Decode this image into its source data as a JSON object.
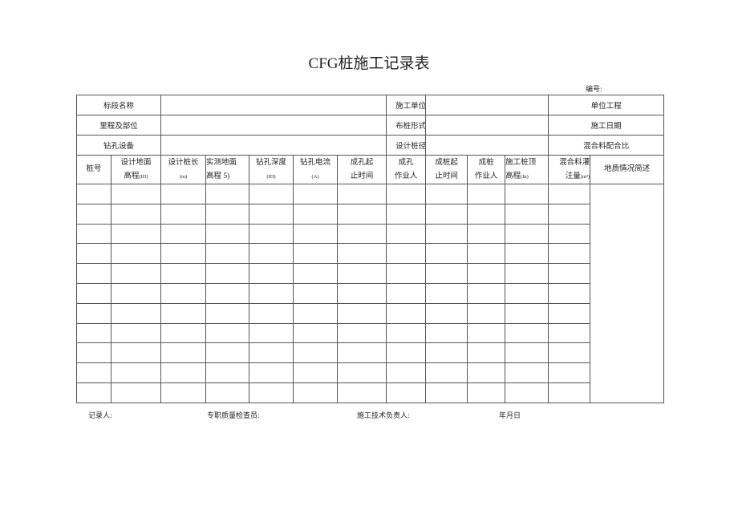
{
  "title": "CFG桩施工记录表",
  "doc_no_label": "编号:",
  "info_rows": [
    {
      "l1": "标段名称",
      "l2": "施工单位",
      "l3": "单位工程"
    },
    {
      "l1": "里程及部位",
      "l2": "布桩形式",
      "l3": "施工日期"
    },
    {
      "l1": "钻孔设备",
      "l2": "设计桩径",
      "l3": "混合料配合比"
    }
  ],
  "headers": {
    "h0": "桩号",
    "h1a": "设计地面",
    "h1b": "高程",
    "h1u": "(ID)",
    "h2a": "设计桩长",
    "h2u": "(m)",
    "h3a": "实测地面",
    "h3b": "高程 5)",
    "h4a": "钻孔深度",
    "h4u": "(ID)",
    "h5a": "钻孔电流",
    "h5u": "(A)",
    "h6a": "成孔起",
    "h6b": "止时间",
    "h7a": "成孔",
    "h7b": "作业人",
    "h8a": "成桩起",
    "h8b": "止时间",
    "h9a": "成桩",
    "h9b": "作业人",
    "h10a": "施工桩顶",
    "h10b": "高程",
    "h10u": "(In)",
    "h11a": "混合料灌",
    "h11b": "注量",
    "h11u": "(m³)",
    "h12": "地质情况简述"
  },
  "footer": {
    "recorder": "记录人:",
    "inspector": "专职质量检查员:",
    "tech_lead": "施工技术负责人:",
    "date": "年月日"
  }
}
